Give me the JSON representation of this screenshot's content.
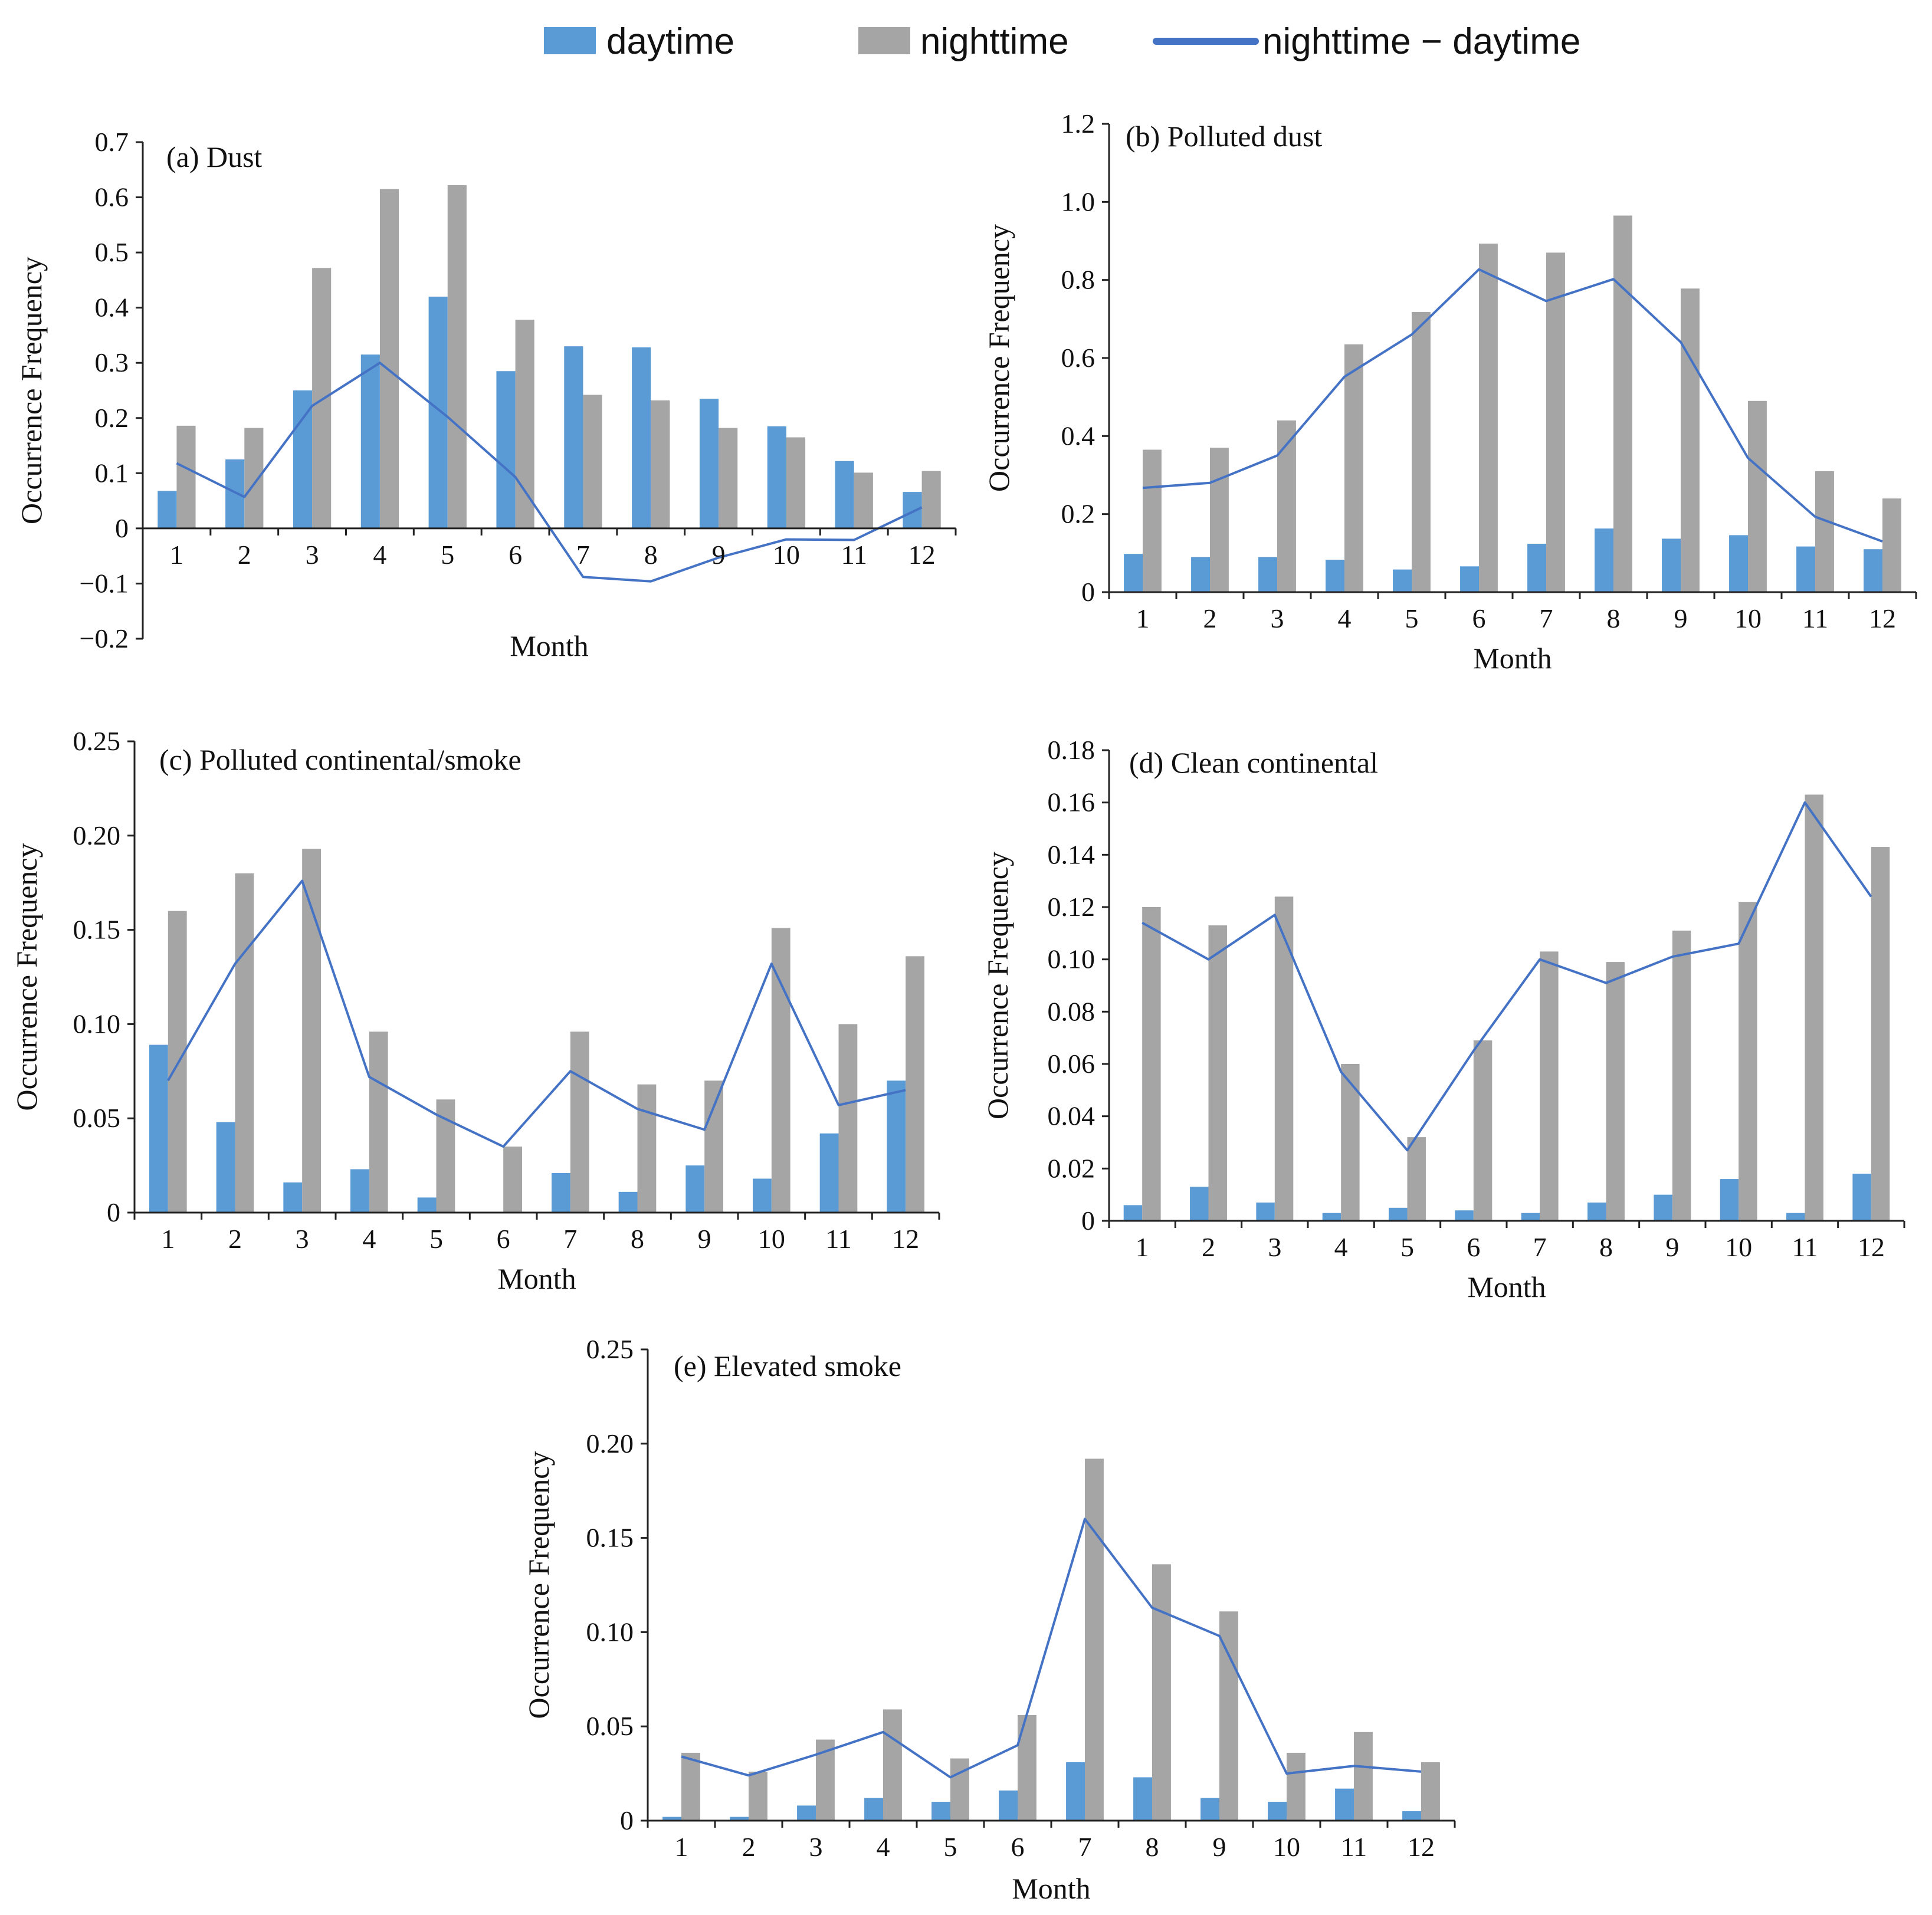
{
  "legend": [
    {
      "label": "daytime",
      "kind": "bar",
      "color": "#5B9BD5"
    },
    {
      "label": "nighttime",
      "kind": "bar",
      "color": "#A5A5A5"
    },
    {
      "label": "nighttime − daytime",
      "kind": "line",
      "color": "#4472C4"
    }
  ],
  "chart_data": [
    {
      "type": "bar",
      "title": "(a) Dust",
      "xlabel": "Month",
      "ylabel": "Occurrence Frequency",
      "categories": [
        "1",
        "2",
        "3",
        "4",
        "5",
        "6",
        "7",
        "8",
        "9",
        "10",
        "11",
        "12"
      ],
      "ylim": [
        -0.2,
        0.7
      ],
      "yticks": [
        -0.2,
        -0.1,
        0,
        0.1,
        0.2,
        0.3,
        0.4,
        0.5,
        0.6,
        0.7
      ],
      "ytick_labels": [
        "−0.2",
        "−0.1",
        "0",
        "0.1",
        "0.2",
        "0.3",
        "0.4",
        "0.5",
        "0.6",
        "0.7"
      ],
      "series": [
        {
          "name": "daytime",
          "kind": "bar",
          "values": [
            0.068,
            0.125,
            0.25,
            0.315,
            0.42,
            0.285,
            0.33,
            0.328,
            0.235,
            0.185,
            0.122,
            0.066
          ]
        },
        {
          "name": "nighttime",
          "kind": "bar",
          "values": [
            0.186,
            0.182,
            0.472,
            0.615,
            0.622,
            0.378,
            0.242,
            0.232,
            0.182,
            0.165,
            0.101,
            0.104
          ]
        },
        {
          "name": "nighttime − daytime",
          "kind": "line",
          "values": [
            0.118,
            0.057,
            0.222,
            0.3,
            0.202,
            0.093,
            -0.088,
            -0.096,
            -0.053,
            -0.02,
            -0.021,
            0.038
          ]
        }
      ]
    },
    {
      "type": "bar",
      "title": "(b) Polluted dust",
      "xlabel": "Month",
      "ylabel": "Occurrence Frequency",
      "categories": [
        "1",
        "2",
        "3",
        "4",
        "5",
        "6",
        "7",
        "8",
        "9",
        "10",
        "11",
        "12"
      ],
      "ylim": [
        0,
        1.2
      ],
      "yticks": [
        0,
        0.2,
        0.4,
        0.6,
        0.8,
        1.0,
        1.2
      ],
      "ytick_labels": [
        "0",
        "0.2",
        "0.4",
        "0.6",
        "0.8",
        "1.0",
        "1.2"
      ],
      "series": [
        {
          "name": "daytime",
          "kind": "bar",
          "values": [
            0.098,
            0.09,
            0.09,
            0.083,
            0.058,
            0.066,
            0.124,
            0.163,
            0.137,
            0.146,
            0.117,
            0.11
          ]
        },
        {
          "name": "nighttime",
          "kind": "bar",
          "values": [
            0.365,
            0.37,
            0.44,
            0.635,
            0.718,
            0.893,
            0.87,
            0.965,
            0.778,
            0.49,
            0.31,
            0.24
          ]
        },
        {
          "name": "nighttime − daytime",
          "kind": "line",
          "values": [
            0.267,
            0.28,
            0.35,
            0.552,
            0.66,
            0.827,
            0.746,
            0.802,
            0.641,
            0.344,
            0.193,
            0.13
          ]
        }
      ]
    },
    {
      "type": "bar",
      "title": "(c) Polluted continental/smoke",
      "xlabel": "Month",
      "ylabel": "Occurrence Frequency",
      "categories": [
        "1",
        "2",
        "3",
        "4",
        "5",
        "6",
        "7",
        "8",
        "9",
        "10",
        "11",
        "12"
      ],
      "ylim": [
        0,
        0.25
      ],
      "yticks": [
        0,
        0.05,
        0.1,
        0.15,
        0.2,
        0.25
      ],
      "ytick_labels": [
        "0",
        "0.05",
        "0.10",
        "0.15",
        "0.20",
        "0.25"
      ],
      "series": [
        {
          "name": "daytime",
          "kind": "bar",
          "values": [
            0.089,
            0.048,
            0.016,
            0.023,
            0.008,
            0.0,
            0.021,
            0.011,
            0.025,
            0.018,
            0.042,
            0.07
          ]
        },
        {
          "name": "nighttime",
          "kind": "bar",
          "values": [
            0.16,
            0.18,
            0.193,
            0.096,
            0.06,
            0.035,
            0.096,
            0.068,
            0.07,
            0.151,
            0.1,
            0.136
          ]
        },
        {
          "name": "nighttime − daytime",
          "kind": "line",
          "values": [
            0.07,
            0.132,
            0.176,
            0.072,
            0.052,
            0.035,
            0.075,
            0.055,
            0.044,
            0.132,
            0.057,
            0.065
          ]
        }
      ]
    },
    {
      "type": "bar",
      "title": "(d) Clean continental",
      "xlabel": "Month",
      "ylabel": "Occurrence Frequency",
      "categories": [
        "1",
        "2",
        "3",
        "4",
        "5",
        "6",
        "7",
        "8",
        "9",
        "10",
        "11",
        "12"
      ],
      "ylim": [
        0,
        0.18
      ],
      "yticks": [
        0,
        0.02,
        0.04,
        0.06,
        0.08,
        0.1,
        0.12,
        0.14,
        0.16,
        0.18
      ],
      "ytick_labels": [
        "0",
        "0.02",
        "0.04",
        "0.06",
        "0.08",
        "0.10",
        "0.12",
        "0.14",
        "0.16",
        "0.18"
      ],
      "series": [
        {
          "name": "daytime",
          "kind": "bar",
          "values": [
            0.006,
            0.013,
            0.007,
            0.003,
            0.005,
            0.004,
            0.003,
            0.007,
            0.01,
            0.016,
            0.003,
            0.018
          ]
        },
        {
          "name": "nighttime",
          "kind": "bar",
          "values": [
            0.12,
            0.113,
            0.124,
            0.06,
            0.032,
            0.069,
            0.103,
            0.099,
            0.111,
            0.122,
            0.163,
            0.143
          ]
        },
        {
          "name": "nighttime − daytime",
          "kind": "line",
          "values": [
            0.114,
            0.1,
            0.117,
            0.057,
            0.027,
            0.065,
            0.1,
            0.091,
            0.101,
            0.106,
            0.16,
            0.124
          ]
        }
      ]
    },
    {
      "type": "bar",
      "title": "(e) Elevated smoke",
      "xlabel": "Month",
      "ylabel": "Occurrence Frequency",
      "categories": [
        "1",
        "2",
        "3",
        "4",
        "5",
        "6",
        "7",
        "8",
        "9",
        "10",
        "11",
        "12"
      ],
      "ylim": [
        0,
        0.25
      ],
      "yticks": [
        0,
        0.05,
        0.1,
        0.15,
        0.2,
        0.25
      ],
      "ytick_labels": [
        "0",
        "0.05",
        "0.10",
        "0.15",
        "0.20",
        "0.25"
      ],
      "series": [
        {
          "name": "daytime",
          "kind": "bar",
          "values": [
            0.002,
            0.002,
            0.008,
            0.012,
            0.01,
            0.016,
            0.031,
            0.023,
            0.012,
            0.01,
            0.017,
            0.005
          ]
        },
        {
          "name": "nighttime",
          "kind": "bar",
          "values": [
            0.036,
            0.026,
            0.043,
            0.059,
            0.033,
            0.056,
            0.192,
            0.136,
            0.111,
            0.036,
            0.047,
            0.031
          ]
        },
        {
          "name": "nighttime − daytime",
          "kind": "line",
          "values": [
            0.034,
            0.024,
            0.035,
            0.047,
            0.023,
            0.04,
            0.16,
            0.113,
            0.098,
            0.025,
            0.029,
            0.026
          ]
        }
      ]
    }
  ]
}
